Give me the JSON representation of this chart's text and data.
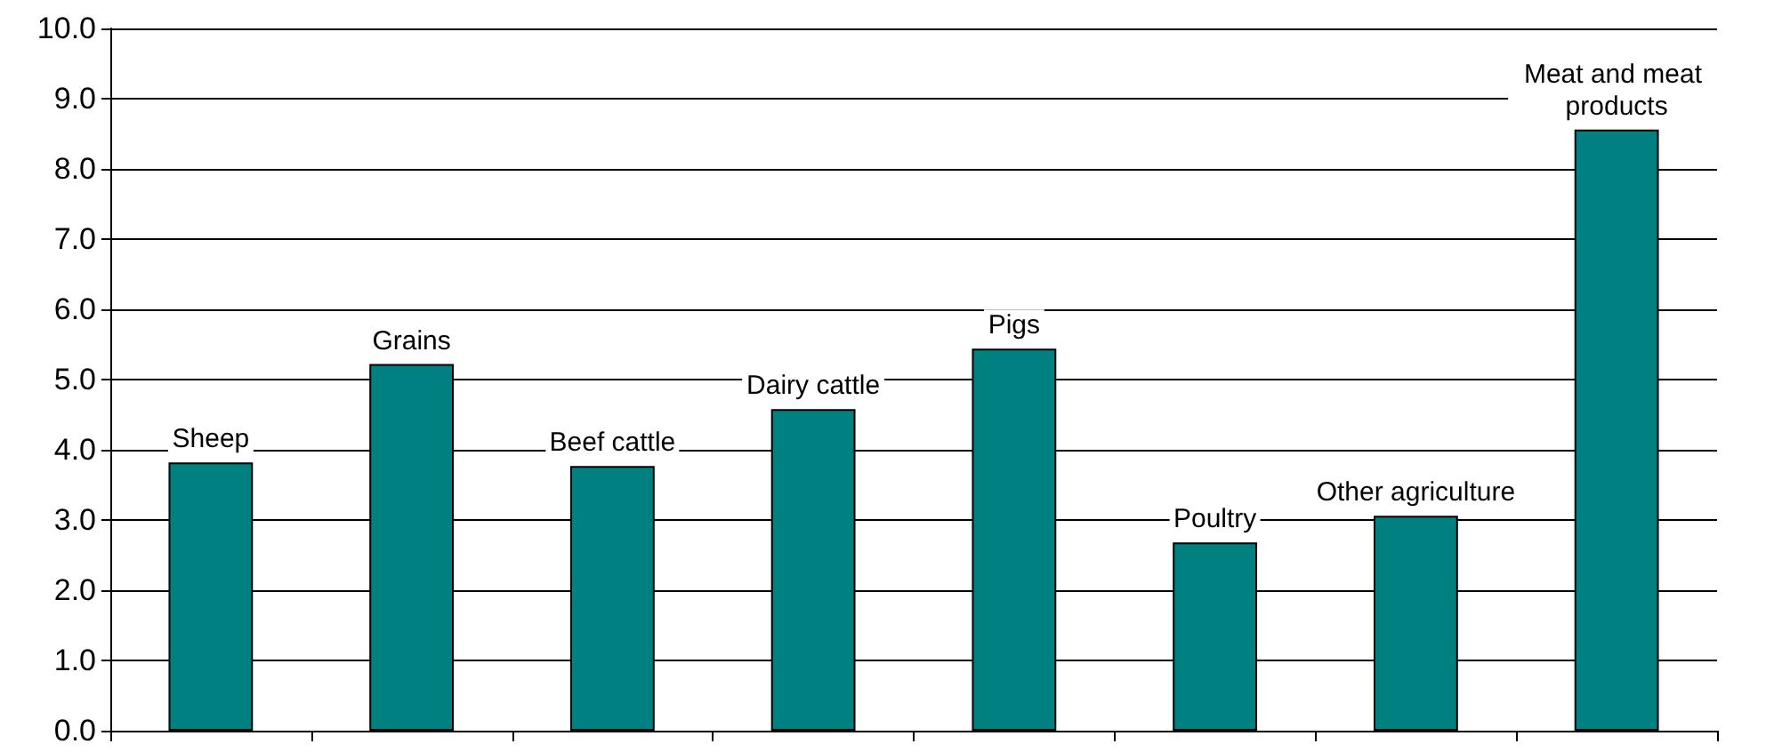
{
  "chart_data": {
    "type": "bar",
    "categories": [
      "Sheep",
      "Grains",
      "Beef cattle",
      "Dairy cattle",
      "Pigs",
      "Poultry",
      "Other agriculture",
      "Meat and meat products"
    ],
    "values": [
      3.82,
      5.22,
      3.77,
      4.58,
      5.44,
      2.68,
      3.06,
      8.56
    ],
    "color": "#008080",
    "ylim": [
      0,
      10
    ],
    "yticks": [
      {
        "value": 0,
        "label": "0.0"
      },
      {
        "value": 1,
        "label": "1.0"
      },
      {
        "value": 2,
        "label": "2.0"
      },
      {
        "value": 3,
        "label": "3.0"
      },
      {
        "value": 4,
        "label": "4.0"
      },
      {
        "value": 5,
        "label": "5.0"
      },
      {
        "value": 6,
        "label": "6.0"
      },
      {
        "value": 7,
        "label": "7.0"
      },
      {
        "value": 8,
        "label": "8.0"
      },
      {
        "value": 9,
        "label": "9.0"
      },
      {
        "value": 10,
        "label": "10.0"
      }
    ],
    "grid": "y"
  }
}
